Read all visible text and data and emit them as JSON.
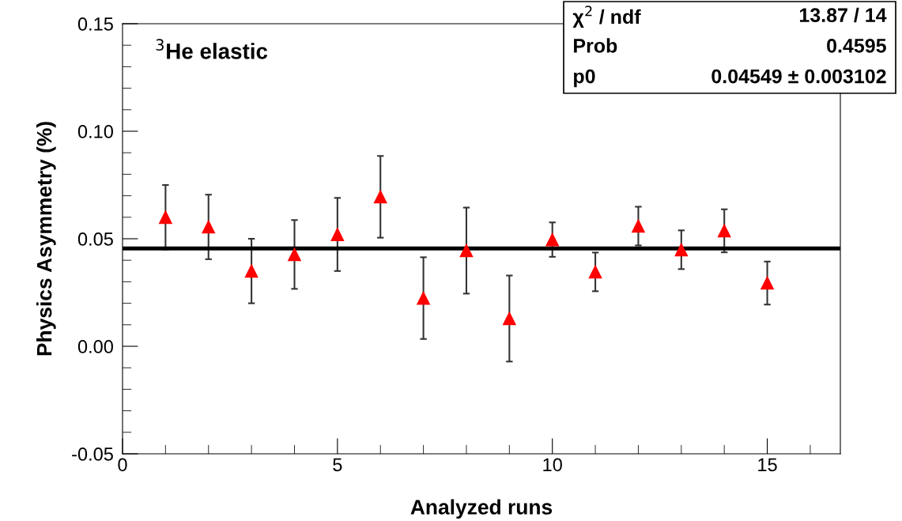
{
  "chart_data": {
    "type": "scatter",
    "xlabel": "Analyzed runs",
    "ylabel": "Physics Asymmetry (%)",
    "annotations": [
      "$^{3}$He elastic",
      "χ$^{2}$ / ndf",
      "13.87 / 14",
      "Prob",
      "0.4595",
      "p0",
      "0.04549 ± 0.003102"
    ],
    "series": [
      {
        "color": "#ff0000",
        "marker": "triangle",
        "x": [
          1,
          2,
          3,
          4,
          5,
          6,
          7,
          8,
          9,
          10,
          11,
          12,
          13,
          14,
          15
        ],
        "values": [
          0.06,
          0.0555,
          0.035,
          0.0427,
          0.052,
          0.0695,
          0.0224,
          0.0445,
          0.0129,
          0.0496,
          0.0346,
          0.0559,
          0.0449,
          0.0537,
          0.0294
        ],
        "errors": [
          0.015,
          0.015,
          0.015,
          0.016,
          0.017,
          0.019,
          0.019,
          0.02,
          0.02,
          0.008,
          0.009,
          0.009,
          0.009,
          0.01,
          0.01
        ]
      },
      {
        "type": "line",
        "color": "#000000",
        "marker": "none",
        "x": [
          0,
          16.7
        ],
        "values": [
          0.0455,
          0.0455
        ]
      }
    ],
    "xlim": [
      0,
      16.7
    ],
    "xticks": [
      0,
      5,
      10,
      15
    ],
    "ylim": [
      -0.05,
      0.15
    ],
    "yticks": [
      {
        "value": -0.05,
        "label": "-0.05"
      },
      {
        "value": 0,
        "label": "0.00"
      },
      {
        "value": 0.05,
        "label": "0.05"
      },
      {
        "value": 0.1,
        "label": "0.10"
      },
      {
        "value": 0.15,
        "label": "0.15"
      }
    ],
    "grid": false
  }
}
